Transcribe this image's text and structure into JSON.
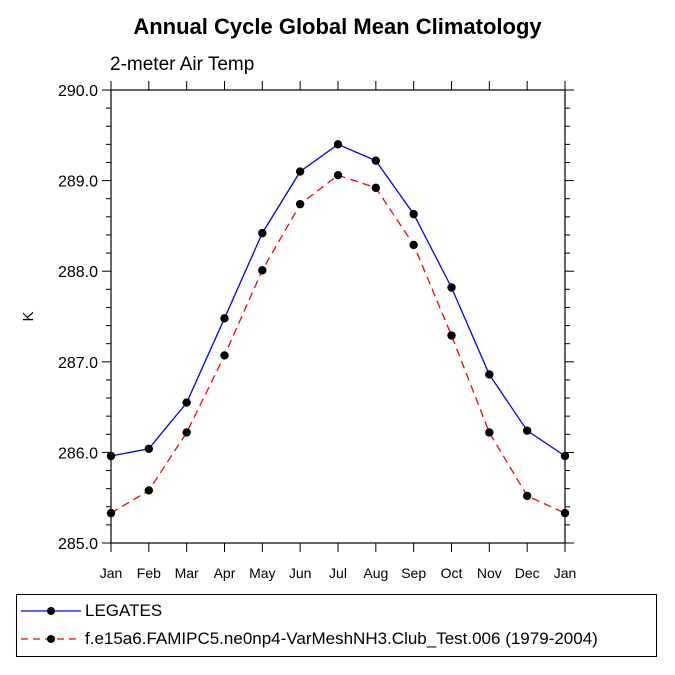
{
  "chart_data": {
    "type": "line",
    "title": "Annual Cycle Global Mean Climatology",
    "subtitle": "2-meter Air Temp",
    "ylabel": "K",
    "xlabel": "",
    "categories": [
      "Jan",
      "Feb",
      "Mar",
      "Apr",
      "May",
      "Jun",
      "Jul",
      "Aug",
      "Sep",
      "Oct",
      "Nov",
      "Dec",
      "Jan"
    ],
    "ylim": [
      285.0,
      290.0
    ],
    "yticks": [
      "285.0",
      "286.0",
      "287.0",
      "288.0",
      "289.0",
      "290.0"
    ],
    "grid": false,
    "series": [
      {
        "name": "LEGATES",
        "color": "#0000ff",
        "dash": "solid",
        "marker": "circle",
        "values": [
          285.96,
          286.04,
          286.55,
          287.48,
          288.42,
          289.1,
          289.4,
          289.22,
          288.63,
          287.82,
          286.86,
          286.24,
          285.96
        ]
      },
      {
        "name": "f.e15a6.FAMIPC5.ne0np4-VarMeshNH3.Club_Test.006 (1979-2004)",
        "color": "#ff0000",
        "dash": "dashed",
        "marker": "circle",
        "values": [
          285.33,
          285.58,
          286.22,
          287.07,
          288.01,
          288.74,
          289.06,
          288.92,
          288.29,
          287.29,
          286.22,
          285.52,
          285.33
        ]
      }
    ],
    "legend_position": "bottom"
  }
}
